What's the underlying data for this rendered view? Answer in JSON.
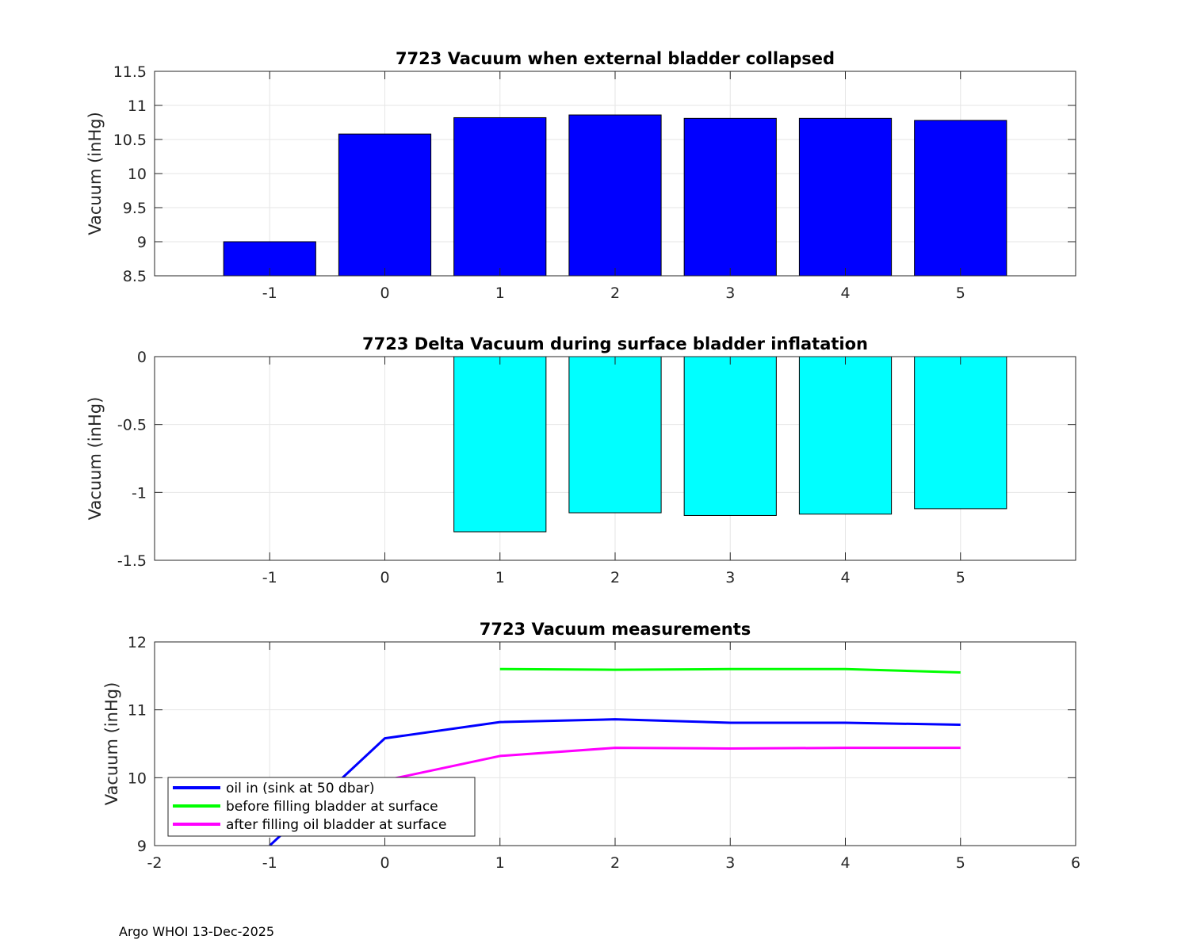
{
  "footer": "Argo WHOI 13-Dec-2025",
  "chart_data": [
    {
      "type": "bar",
      "title": "7723 Vacuum when external bladder collapsed",
      "xlabel": "",
      "ylabel": "Vacuum (inHg)",
      "x": [
        -1,
        0,
        1,
        2,
        3,
        4,
        5
      ],
      "values": [
        9.0,
        10.58,
        10.82,
        10.86,
        10.81,
        10.81,
        10.78
      ],
      "xlim": [
        -2,
        6
      ],
      "ylim": [
        8.5,
        11.5
      ],
      "xticks": [
        -1,
        0,
        1,
        2,
        3,
        4,
        5
      ],
      "xtick_labels": [
        "-1",
        "0",
        "1",
        "2",
        "3",
        "4",
        "5"
      ],
      "yticks": [
        8.5,
        9,
        9.5,
        10,
        10.5,
        11,
        11.5
      ],
      "ytick_labels": [
        "8.5",
        "9",
        "9.5",
        "10",
        "10.5",
        "11",
        "11.5"
      ],
      "color": "#0000ff",
      "grid": true
    },
    {
      "type": "bar",
      "title": "7723 Delta Vacuum during surface bladder inflatation",
      "xlabel": "",
      "ylabel": "Vacuum (inHg)",
      "x": [
        1,
        2,
        3,
        4,
        5
      ],
      "values": [
        -1.29,
        -1.15,
        -1.17,
        -1.16,
        -1.12
      ],
      "xlim": [
        -2,
        6
      ],
      "ylim": [
        -1.5,
        0
      ],
      "xticks": [
        -1,
        0,
        1,
        2,
        3,
        4,
        5
      ],
      "xtick_labels": [
        "-1",
        "0",
        "1",
        "2",
        "3",
        "4",
        "5"
      ],
      "yticks": [
        -1.5,
        -1,
        -0.5,
        0
      ],
      "ytick_labels": [
        "-1.5",
        "-1",
        "-0.5",
        "0"
      ],
      "color": "#00ffff",
      "grid": true
    },
    {
      "type": "line",
      "title": "7723 Vacuum measurements",
      "xlabel": "",
      "ylabel": "Vacuum (inHg)",
      "xlim": [
        -2,
        6
      ],
      "ylim": [
        9,
        12
      ],
      "xticks": [
        -2,
        -1,
        0,
        1,
        2,
        3,
        4,
        5,
        6
      ],
      "xtick_labels": [
        "-2",
        "-1",
        "0",
        "1",
        "2",
        "3",
        "4",
        "5",
        "6"
      ],
      "yticks": [
        9,
        10,
        11,
        12
      ],
      "ytick_labels": [
        "9",
        "10",
        "11",
        "12"
      ],
      "grid": true,
      "legend_position": "bottom-left",
      "series": [
        {
          "name": "oil in (sink at 50 dbar)",
          "color": "#0000ff",
          "x": [
            -1,
            0,
            1,
            2,
            3,
            4,
            5
          ],
          "y": [
            9.0,
            10.58,
            10.82,
            10.86,
            10.81,
            10.81,
            10.78
          ]
        },
        {
          "name": "before filling bladder at surface",
          "color": "#00ff00",
          "x": [
            1,
            2,
            3,
            4,
            5
          ],
          "y": [
            11.6,
            11.59,
            11.6,
            11.6,
            11.55
          ]
        },
        {
          "name": "after filling oil bladder at surface",
          "color": "#ff00ff",
          "x": [
            0,
            1,
            2,
            3,
            4,
            5
          ],
          "y": [
            9.96,
            10.32,
            10.44,
            10.43,
            10.44,
            10.44
          ]
        }
      ]
    }
  ]
}
